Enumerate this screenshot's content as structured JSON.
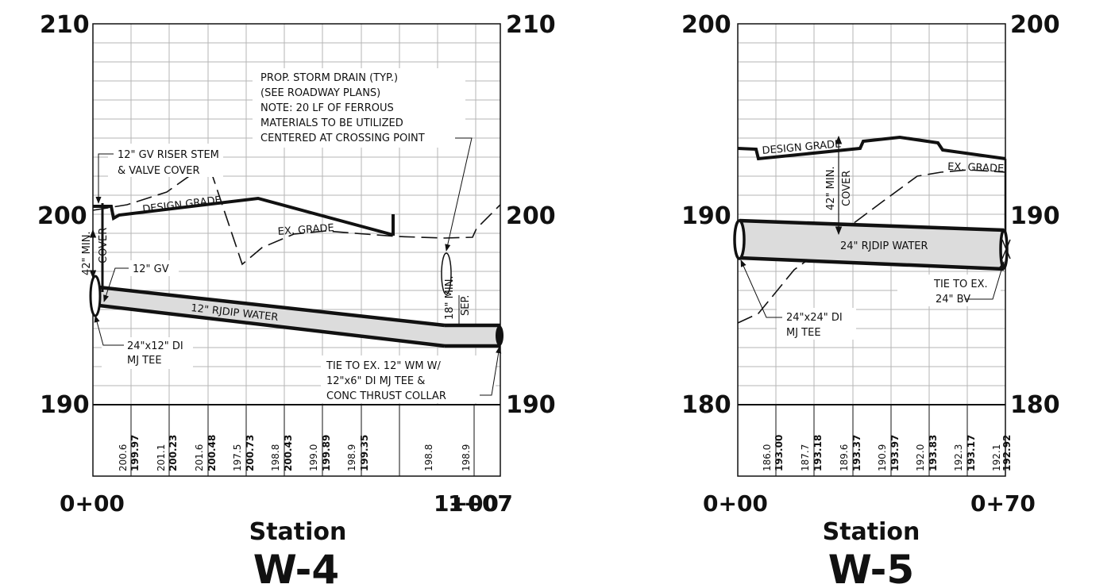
{
  "axis_label": "Station",
  "profiles": [
    {
      "id": "w4",
      "title": "W-4",
      "elev_labels": {
        "top": "210",
        "mid": "200",
        "bottom": "190"
      },
      "station_start": "0+00",
      "station_end": "1+07",
      "station_end_overlap": "1+00",
      "elevation_table": [
        {
          "existing": "200.6",
          "design": "199.97"
        },
        {
          "existing": "201.1",
          "design": "200.23"
        },
        {
          "existing": "201.6",
          "design": "200.48"
        },
        {
          "existing": "197.5",
          "design": "200.73"
        },
        {
          "existing": "198.8",
          "design": "200.43"
        },
        {
          "existing": "199.0",
          "design": "199.89"
        },
        {
          "existing": "198.9",
          "design": "199.35"
        },
        {
          "existing": "198.8"
        },
        {
          "existing": "198.9"
        }
      ],
      "labels": {
        "design_grade": "DESIGN GRADE",
        "ex_grade": "EX. GRADE",
        "pipe": "12\" RJDIP  WATER",
        "min_cover_1": "42\" MIN.",
        "min_cover_2": "COVER",
        "min_sep_1": "18\" MIN.",
        "min_sep_2": "SEP.",
        "riser_1": "12\" GV RISER STEM",
        "riser_2": "& VALVE COVER",
        "gv": "12\" GV",
        "tee_1": "24\"x12\" DI",
        "tee_2": "MJ TEE",
        "storm_1": "PROP. STORM DRAIN (TYP.)",
        "storm_2": "(SEE ROADWAY PLANS)",
        "storm_3": "NOTE: 20 LF OF FERROUS",
        "storm_4": "MATERIALS TO BE UTILIZED",
        "storm_5": "CENTERED AT CROSSING POINT",
        "tie_1": "TIE TO EX. 12\" WM W/",
        "tie_2": "12\"x6\" DI MJ TEE &",
        "tie_3": "CONC THRUST COLLAR"
      }
    },
    {
      "id": "w5",
      "title": "W-5",
      "elev_labels": {
        "top": "200",
        "mid": "190",
        "bottom": "180"
      },
      "station_start": "0+00",
      "station_end": "0+70",
      "elevation_table": [
        {
          "existing": "186.0",
          "design": "193.00"
        },
        {
          "existing": "187.7",
          "design": "193.18"
        },
        {
          "existing": "189.6",
          "design": "193.37"
        },
        {
          "existing": "190.9",
          "design": "193.97"
        },
        {
          "existing": "192.0",
          "design": "193.83"
        },
        {
          "existing": "192.3",
          "design": "193.17"
        },
        {
          "existing": "192.1",
          "design": "192.92"
        }
      ],
      "labels": {
        "design_grade": "DESIGN GRADE",
        "ex_grade": "EX. GRADE",
        "pipe": "24\" RJDIP  WATER",
        "min_cover_1": "42\" MIN.",
        "min_cover_2": "COVER",
        "tie_1": "TIE TO EX.",
        "tie_2": "24\" BV",
        "tee_1": "24\"x24\" DI",
        "tee_2": "MJ TEE"
      }
    }
  ]
}
